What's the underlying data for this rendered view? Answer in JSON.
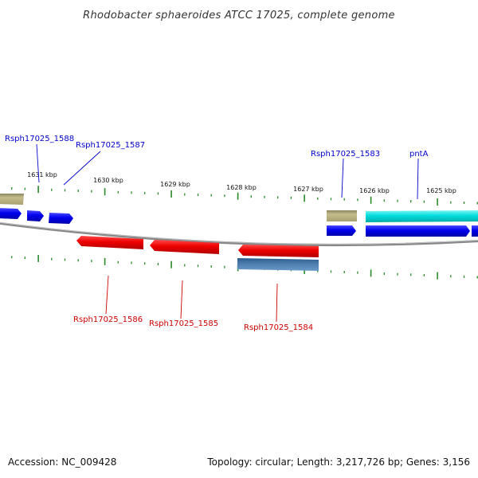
{
  "title": "Rhodobacter sphaeroides ATCC 17025, complete genome",
  "footer": {
    "accession": "Accession: NC_009428",
    "summary": "Topology: circular; Length: 3,217,726 bp; Genes: 3,156"
  },
  "colors": {
    "forward_cds": "#0000ee",
    "reverse_cds": "#ee0000",
    "khaki_feature": "#b8b080",
    "cyan_feature": "#00dddd",
    "steel_feature": "#4a7aaa",
    "backbone": "#8a8a8a",
    "ticks": "#2a8a2a",
    "label_forward": "#0000cc",
    "label_reverse": "#cc0000"
  },
  "kbp_labels": [
    "1631 kbp",
    "1630 kbp",
    "1629 kbp",
    "1628 kbp",
    "1627 kbp",
    "1626 kbp",
    "1625 kbp"
  ],
  "gene_labels": {
    "rsph_1588": "Rsph17025_1588",
    "rsph_1587": "Rsph17025_1587",
    "rsph_1583": "Rsph17025_1583",
    "pnta": "pntA",
    "rsph_1586": "Rsph17025_1586",
    "rsph_1585": "Rsph17025_1585",
    "rsph_1584": "Rsph17025_1584"
  }
}
